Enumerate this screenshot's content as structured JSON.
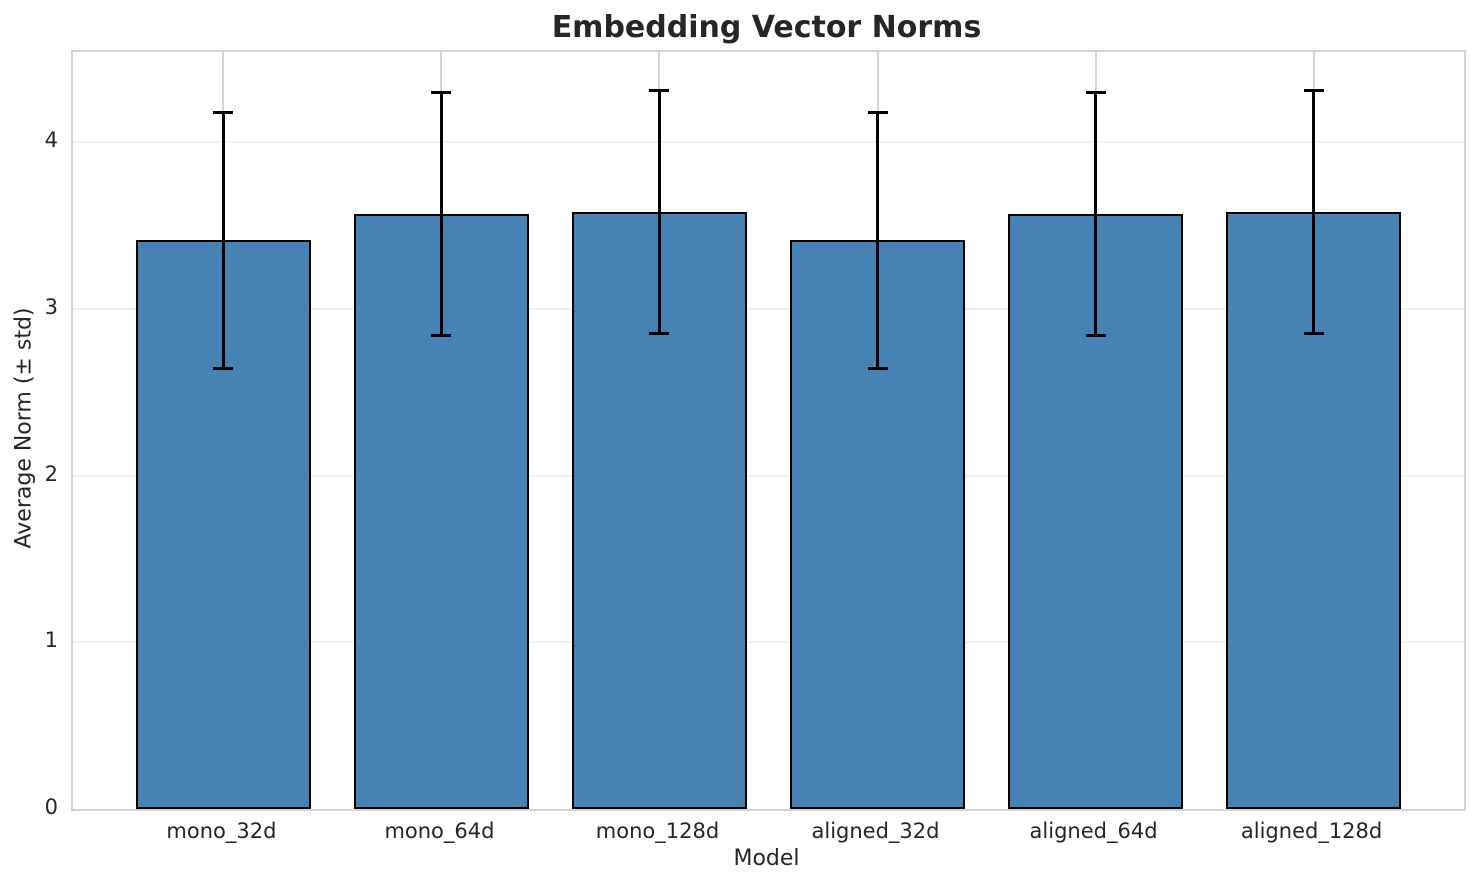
{
  "title": "Embedding Vector Norms",
  "chart_data": {
    "type": "bar",
    "title": "Embedding Vector Norms",
    "xlabel": "Model",
    "ylabel": "Average Norm (± std)",
    "categories": [
      "mono_32d",
      "mono_64d",
      "mono_128d",
      "aligned_32d",
      "aligned_64d",
      "aligned_128d"
    ],
    "series": [
      {
        "name": "Average Norm",
        "values": [
          3.41,
          3.57,
          3.58,
          3.41,
          3.57,
          3.58
        ],
        "errors": [
          0.77,
          0.73,
          0.73,
          0.77,
          0.73,
          0.73
        ]
      }
    ],
    "ylim": [
      0,
      4.54
    ],
    "yticks": [
      0,
      1,
      2,
      3,
      4
    ],
    "xlim": [
      -0.69,
      5.69
    ],
    "bar_width": 0.8,
    "grid": true,
    "legend": "none",
    "colors": {
      "bar_fill": "#4682B4",
      "bar_edge": "#000000",
      "error_bar": "#000000",
      "grid_horizontal": "#f0f0f0",
      "grid_vertical": "#d5d5d5",
      "spine": "#d4d4d4",
      "text": "#262626",
      "background": "#ffffff"
    }
  }
}
